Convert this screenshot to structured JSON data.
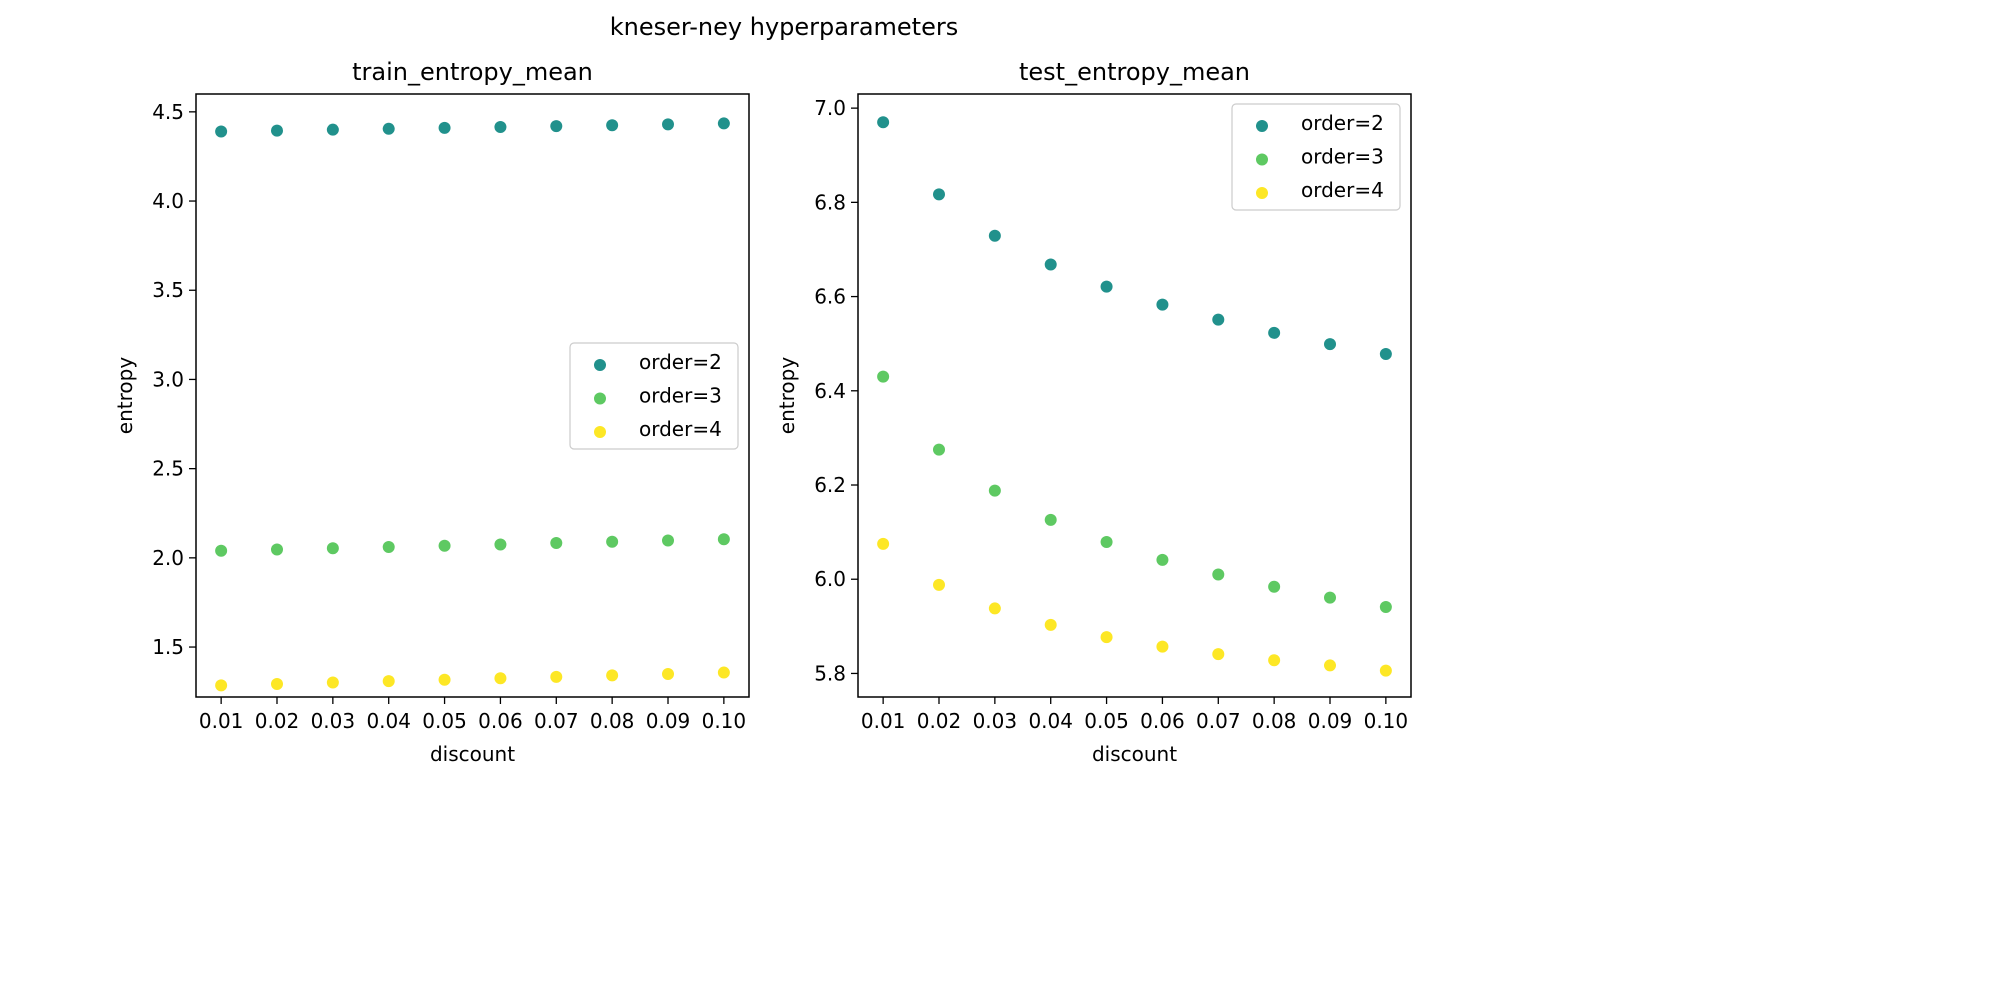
{
  "figure": {
    "suptitle": "kneser-ney hyperparameters"
  },
  "colors": {
    "order2": "#21918c",
    "order3": "#5ec962",
    "order4": "#fde725"
  },
  "chart_data": [
    {
      "type": "scatter",
      "title": "train_entropy_mean",
      "xlabel": "discount",
      "ylabel": "entropy",
      "x": [
        0.01,
        0.02,
        0.03,
        0.04,
        0.05,
        0.06,
        0.07,
        0.08,
        0.09,
        0.1
      ],
      "xtick_labels": [
        "0.01",
        "0.02",
        "0.03",
        "0.04",
        "0.05",
        "0.06",
        "0.07",
        "0.08",
        "0.09",
        "0.10"
      ],
      "xlim": [
        0.0055,
        0.1045
      ],
      "ylim": [
        1.22,
        4.6
      ],
      "yticks": [
        1.5,
        2.0,
        2.5,
        3.0,
        3.5,
        4.0,
        4.5
      ],
      "ytick_labels": [
        "1.5",
        "2.0",
        "2.5",
        "3.0",
        "3.5",
        "4.0",
        "4.5"
      ],
      "legend_position": "center-right",
      "series": [
        {
          "name": "order=2",
          "color": "#21918c",
          "values": [
            4.39,
            4.395,
            4.4,
            4.405,
            4.41,
            4.415,
            4.42,
            4.425,
            4.43,
            4.435
          ]
        },
        {
          "name": "order=3",
          "color": "#5ec962",
          "values": [
            2.04,
            2.047,
            2.054,
            2.061,
            2.068,
            2.075,
            2.083,
            2.09,
            2.097,
            2.104
          ]
        },
        {
          "name": "order=4",
          "color": "#fde725",
          "values": [
            1.285,
            1.293,
            1.301,
            1.309,
            1.317,
            1.325,
            1.333,
            1.341,
            1.349,
            1.357
          ]
        }
      ]
    },
    {
      "type": "scatter",
      "title": "test_entropy_mean",
      "xlabel": "discount",
      "ylabel": "entropy",
      "x": [
        0.01,
        0.02,
        0.03,
        0.04,
        0.05,
        0.06,
        0.07,
        0.08,
        0.09,
        0.1
      ],
      "xtick_labels": [
        "0.01",
        "0.02",
        "0.03",
        "0.04",
        "0.05",
        "0.06",
        "0.07",
        "0.08",
        "0.09",
        "0.10"
      ],
      "xlim": [
        0.0055,
        0.1045
      ],
      "ylim": [
        5.75,
        7.03
      ],
      "yticks": [
        5.8,
        6.0,
        6.2,
        6.4,
        6.6,
        6.8,
        7.0
      ],
      "ytick_labels": [
        "5.8",
        "6.0",
        "6.2",
        "6.4",
        "6.6",
        "6.8",
        "7.0"
      ],
      "legend_position": "top-right",
      "series": [
        {
          "name": "order=2",
          "color": "#21918c",
          "values": [
            6.97,
            6.817,
            6.729,
            6.668,
            6.621,
            6.583,
            6.551,
            6.523,
            6.499,
            6.478
          ]
        },
        {
          "name": "order=3",
          "color": "#5ec962",
          "values": [
            6.43,
            6.275,
            6.188,
            6.126,
            6.079,
            6.041,
            6.01,
            5.984,
            5.961,
            5.941
          ]
        },
        {
          "name": "order=4",
          "color": "#fde725",
          "values": [
            6.075,
            5.988,
            5.938,
            5.903,
            5.877,
            5.857,
            5.841,
            5.828,
            5.817,
            5.806
          ]
        }
      ]
    }
  ]
}
